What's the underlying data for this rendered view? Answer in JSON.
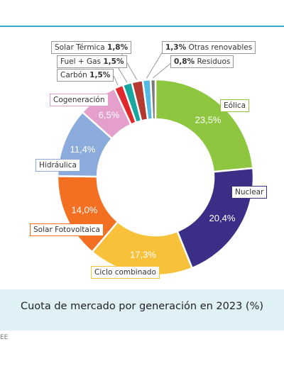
{
  "chart_data": {
    "type": "pie",
    "variant": "donut",
    "title": "Cuota de mercado por generación en 2023 (%)",
    "unit": "%",
    "slices": [
      {
        "name": "Eólica",
        "value": 23.5,
        "value_label": "23,5%",
        "color": "#8ec63f",
        "label_border": "#8ec63f"
      },
      {
        "name": "Nuclear",
        "value": 20.4,
        "value_label": "20,4%",
        "color": "#3b2e87",
        "label_border": "#3b2e87"
      },
      {
        "name": "Ciclo combinado",
        "value": 17.3,
        "value_label": "17,3%",
        "color": "#f8c13a",
        "label_border": "#f8c13a"
      },
      {
        "name": "Solar Fotovoltaica",
        "value": 14.0,
        "value_label": "14,0%",
        "color": "#f36f21",
        "label_border": "#f36f21"
      },
      {
        "name": "Hidráulica",
        "value": 11.4,
        "value_label": "11,4%",
        "color": "#8aabdb",
        "label_border": "#8aabdb"
      },
      {
        "name": "Cogeneración",
        "value": 6.5,
        "value_label": "6,5%",
        "color": "#e49fcb",
        "label_border": "#e49fcb"
      },
      {
        "name": "Carbón",
        "value": 1.5,
        "value_label": "1,5%",
        "color": "#e0282d",
        "label_border": "#9a9a9a"
      },
      {
        "name": "Fuel + Gas",
        "value": 1.5,
        "value_label": "1,5%",
        "color": "#19a7a0",
        "label_border": "#9a9a9a"
      },
      {
        "name": "Solar Térmica",
        "value": 1.8,
        "value_label": "1,8%",
        "color": "#b53a32",
        "label_border": "#9a9a9a"
      },
      {
        "name": "Otras renovables",
        "value": 1.3,
        "value_label": "1,3%",
        "color": "#55b9e6",
        "label_border": "#9a9a9a"
      },
      {
        "name": "Residuos",
        "value": 0.8,
        "value_label": "0,8%",
        "color": "#7a7a7a",
        "label_border": "#9a9a9a"
      }
    ]
  },
  "footer": {
    "text": "EE"
  }
}
